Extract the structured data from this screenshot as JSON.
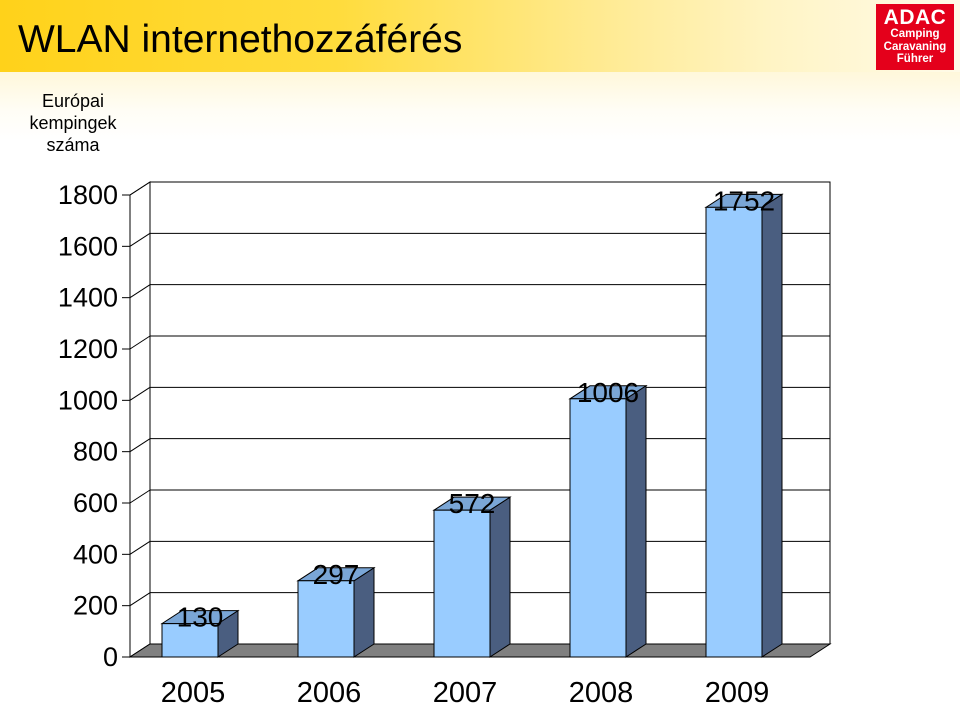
{
  "header": {
    "title": "WLAN internethozzáférés"
  },
  "logo": {
    "brand": "ADAC",
    "line1": "Camping",
    "line2": "Caravaning",
    "line3": "Führer",
    "color": "#e4001b"
  },
  "chart_data": {
    "type": "bar",
    "title": "WLAN internethozzáférés",
    "ylabel_lines": [
      "Európai",
      "kempingek",
      "száma"
    ],
    "xlabel": "",
    "categories": [
      "2005",
      "2006",
      "2007",
      "2008",
      "2009"
    ],
    "values": [
      130,
      297,
      572,
      1006,
      1752
    ],
    "data_labels": [
      "130",
      "297",
      "572",
      "1006",
      "1752"
    ],
    "ylim": [
      0,
      1800
    ],
    "yticks": [
      0,
      200,
      400,
      600,
      800,
      1000,
      1200,
      1400,
      1600,
      1800
    ],
    "grid": true,
    "legend": "none",
    "bar_color": "#99ccff",
    "bar_side_color": "#4a5e80",
    "floor_color": "#808080",
    "three_d": true
  }
}
